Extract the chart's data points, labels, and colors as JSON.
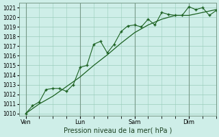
{
  "background_color": "#ceeee8",
  "grid_color": "#99ccbb",
  "line_color": "#1a6020",
  "title": "Pression niveau de la mer( hPa )",
  "ylim": [
    1009.8,
    1021.5
  ],
  "yticks": [
    1010,
    1011,
    1012,
    1013,
    1014,
    1015,
    1016,
    1017,
    1018,
    1019,
    1020,
    1021
  ],
  "day_labels": [
    "Ven",
    "Lun",
    "Sam",
    "Dim"
  ],
  "day_positions": [
    0,
    48,
    96,
    144
  ],
  "xlim": [
    -6,
    168
  ],
  "smooth_x": [
    0,
    12,
    24,
    36,
    48,
    60,
    72,
    84,
    96,
    108,
    120,
    132,
    144,
    156,
    168
  ],
  "smooth_y": [
    1010.0,
    1011.0,
    1011.8,
    1012.8,
    1013.8,
    1015.0,
    1016.1,
    1017.3,
    1018.4,
    1019.2,
    1019.8,
    1020.2,
    1020.2,
    1020.5,
    1020.8
  ],
  "data_x": [
    0,
    6,
    12,
    18,
    24,
    30,
    36,
    42,
    48,
    54,
    60,
    66,
    72,
    78,
    84,
    90,
    96,
    102,
    108,
    114,
    120,
    126,
    132,
    138,
    144,
    150,
    156,
    162,
    168
  ],
  "data_y": [
    1010.0,
    1010.8,
    1011.2,
    1012.5,
    1012.6,
    1012.6,
    1012.3,
    1013.0,
    1014.8,
    1015.0,
    1017.2,
    1017.5,
    1016.3,
    1017.2,
    1018.5,
    1019.1,
    1019.2,
    1019.0,
    1019.8,
    1019.2,
    1020.5,
    1020.3,
    1020.2,
    1020.2,
    1021.1,
    1020.8,
    1021.0,
    1020.2,
    1020.7
  ]
}
